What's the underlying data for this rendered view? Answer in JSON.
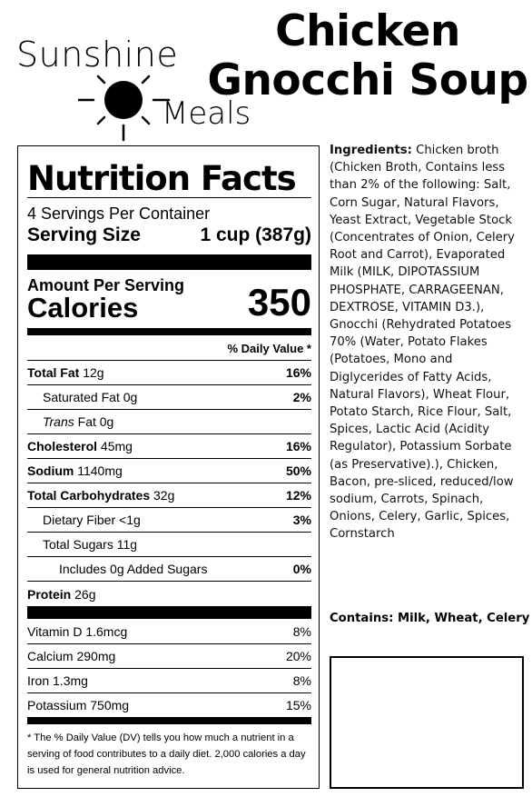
{
  "brand": {
    "line1": "Sunshine",
    "line2": "Meals",
    "logo_icon": "sun-icon"
  },
  "title": {
    "line1": "Chicken",
    "line2": "Gnocchi Soup"
  },
  "nutrition": {
    "heading": "Nutrition Facts",
    "servings_per_container": "4 Servings Per Container",
    "serving_size_label": "Serving Size",
    "serving_size_value": "1 cup (387g)",
    "amount_per_serving": "Amount Per Serving",
    "calories_label": "Calories",
    "calories_value": "350",
    "dv_header": "% Daily Value *",
    "rows": {
      "total_fat": {
        "name": "Total Fat",
        "amount": "12g",
        "dv": "16%"
      },
      "saturated_fat": {
        "name": "Saturated Fat",
        "amount": "0g",
        "dv": "2%"
      },
      "trans_fat": {
        "name_italic": "Trans",
        "name": "Fat",
        "amount": "0g"
      },
      "cholesterol": {
        "name": "Cholesterol",
        "amount": "45mg",
        "dv": "16%"
      },
      "sodium": {
        "name": "Sodium",
        "amount": "1140mg",
        "dv": "50%"
      },
      "total_carbs": {
        "name": "Total Carbohydrates",
        "amount": "32g",
        "dv": "12%"
      },
      "fiber": {
        "name": "Dietary Fiber",
        "amount": "<1g",
        "dv": "3%"
      },
      "sugars": {
        "name": "Total Sugars",
        "amount": "11g"
      },
      "added_sugars": {
        "name": "Includes 0g Added Sugars",
        "dv": "0%"
      },
      "protein": {
        "name": "Protein",
        "amount": "26g"
      }
    },
    "vitamins": {
      "vitamin_d": {
        "name": "Vitamin D",
        "amount": "1.6mcg",
        "dv": "8%"
      },
      "calcium": {
        "name": "Calcium",
        "amount": "290mg",
        "dv": "20%"
      },
      "iron": {
        "name": "Iron",
        "amount": "1.3mg",
        "dv": "8%"
      },
      "potassium": {
        "name": "Potassium",
        "amount": "750mg",
        "dv": "15%"
      }
    },
    "footnote": "* The % Daily Value (DV) tells you how much a nutrient in a serving of food contributes to a daily diet. 2,000 calories a day is used for general nutrition advice."
  },
  "ingredients": {
    "label": "Ingredients:",
    "text": "Chicken broth (Chicken Broth, Contains less than 2% of the following: Salt, Corn Sugar, Natural Flavors, Yeast Extract, Vegetable Stock (Concentrates of Onion, Celery Root and Carrot), Evaporated Milk (MILK, DIPOTASSIUM PHOSPHATE, CARRAGEENAN, DEXTROSE, VITAMIN D3.), Gnocchi (Rehydrated Potatoes 70% (Water, Potato Flakes (Potatoes, Mono and Diglycerides of Fatty Acids, Natural Flavors), Wheat Flour, Potato Starch, Rice Flour, Salt, Spices, Lactic Acid (Acidity Regulator), Potassium Sorbate (as Preservative).), Chicken, Bacon, pre-sliced, reduced/low sodium, Carrots, Spinach, Onions, Celery, Garlic, Spices, Cornstarch"
  },
  "contains": "Contains: Milk, Wheat, Celery"
}
